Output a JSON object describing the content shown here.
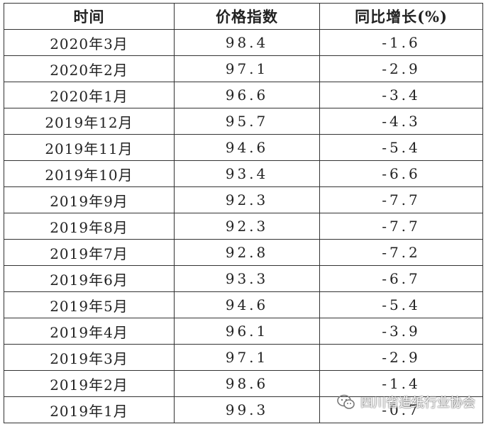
{
  "table": {
    "header": [
      "时间",
      "价格指数",
      "同比增长(%)"
    ],
    "rows": [
      [
        "2020年3月",
        "98.4",
        "-1.6"
      ],
      [
        "2020年2月",
        "97.1",
        "-2.9"
      ],
      [
        "2020年1月",
        "96.6",
        "-3.4"
      ],
      [
        "2019年12月",
        "95.7",
        "-4.3"
      ],
      [
        "2019年11月",
        "94.6",
        "-5.4"
      ],
      [
        "2019年10月",
        "93.4",
        "-6.6"
      ],
      [
        "2019年9月",
        "92.3",
        "-7.7"
      ],
      [
        "2019年8月",
        "92.3",
        "-7.7"
      ],
      [
        "2019年7月",
        "92.8",
        "-7.2"
      ],
      [
        "2019年6月",
        "93.3",
        "-6.7"
      ],
      [
        "2019年5月",
        "94.6",
        "-5.4"
      ],
      [
        "2019年4月",
        "96.1",
        "-3.9"
      ],
      [
        "2019年3月",
        "97.1",
        "-2.9"
      ],
      [
        "2019年2月",
        "98.6",
        "-1.4"
      ],
      [
        "2019年1月",
        "99.3",
        "-0.7"
      ]
    ]
  },
  "watermark": {
    "text": "四川省造纸行业协会"
  }
}
